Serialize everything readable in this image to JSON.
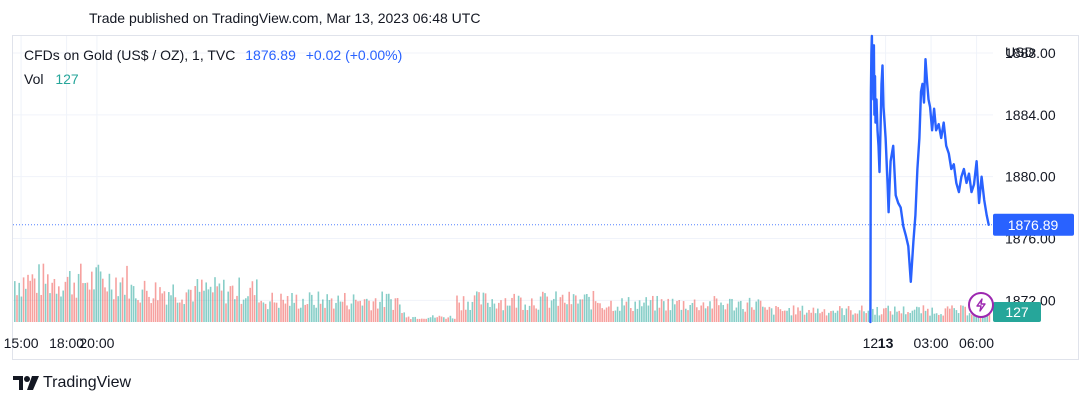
{
  "header": {
    "published": "Trade published on TradingView.com, Mar 13, 2023 06:48 UTC"
  },
  "legend": {
    "symbol": "CFDs on Gold (US$ / OZ), 1, TVC",
    "last": "1876.89",
    "change": "+0.02 (+0.00%)",
    "vol_label": "Vol",
    "vol_value": "127"
  },
  "price_axis": {
    "currency": "USD",
    "last_price_label": "1876.89",
    "last_vol_label": "127"
  },
  "brand": {
    "name": "TradingView"
  },
  "colors": {
    "line": "#2962ff",
    "vol_up": "#26a69a",
    "vol_down": "#ef5350",
    "grid": "#f0f3fa",
    "flash_icon": "#9c27b0"
  },
  "chart_data": {
    "type": "line",
    "title": "CFDs on Gold (US$ / OZ), 1, TVC",
    "ylabel": "USD",
    "ylim": [
      1870.6,
      1889.1
    ],
    "y_ticks": [
      1872.0,
      1876.0,
      1880.0,
      1884.0,
      1888.0
    ],
    "y_tick_labels": [
      "1872.00",
      "1876.00",
      "1880.00",
      "1884.00",
      "1888.00"
    ],
    "x_range": [
      "2023-03-10 14:28",
      "2023-03-13 07:05"
    ],
    "x_tick_labels": [
      {
        "x": "2023-03-10 15:00",
        "label": "15:00",
        "bold": false
      },
      {
        "x": "2023-03-10 18:00",
        "label": "18:00",
        "bold": false
      },
      {
        "x": "2023-03-10 20:00",
        "label": "20:00",
        "bold": false
      },
      {
        "x": "2023-03-12 23:00",
        "label": "12",
        "bold": false
      },
      {
        "x": "2023-03-13 00:00",
        "label": "13",
        "bold": true
      },
      {
        "x": "2023-03-13 03:00",
        "label": "03:00",
        "bold": false
      },
      {
        "x": "2023-03-13 06:00",
        "label": "06:00",
        "bold": false
      }
    ],
    "grid": true,
    "last_price": 1876.89,
    "series": [
      {
        "x": [
          "2023-03-12 23:00",
          "2023-03-12 23:02",
          "2023-03-12 23:04",
          "2023-03-12 23:06",
          "2023-03-12 23:08",
          "2023-03-12 23:10",
          "2023-03-12 23:12",
          "2023-03-12 23:14",
          "2023-03-12 23:16",
          "2023-03-12 23:18",
          "2023-03-12 23:20",
          "2023-03-12 23:24",
          "2023-03-12 23:28",
          "2023-03-12 23:32",
          "2023-03-12 23:36",
          "2023-03-12 23:40",
          "2023-03-12 23:44",
          "2023-03-12 23:48",
          "2023-03-12 23:52",
          "2023-03-12 23:56",
          "2023-03-13 00:00",
          "2023-03-13 00:04",
          "2023-03-13 00:08",
          "2023-03-13 00:12",
          "2023-03-13 00:16",
          "2023-03-13 00:20",
          "2023-03-13 00:30",
          "2023-03-13 00:40",
          "2023-03-13 00:50",
          "2023-03-13 01:00",
          "2023-03-13 01:10",
          "2023-03-13 01:20",
          "2023-03-13 01:30",
          "2023-03-13 01:40",
          "2023-03-13 01:50",
          "2023-03-13 01:58",
          "2023-03-13 02:06",
          "2023-03-13 02:14",
          "2023-03-13 02:20",
          "2023-03-13 02:26",
          "2023-03-13 02:32",
          "2023-03-13 02:38",
          "2023-03-13 02:44",
          "2023-03-13 02:50",
          "2023-03-13 02:56",
          "2023-03-13 03:04",
          "2023-03-13 03:12",
          "2023-03-13 03:20",
          "2023-03-13 03:30",
          "2023-03-13 03:40",
          "2023-03-13 03:50",
          "2023-03-13 04:00",
          "2023-03-13 04:10",
          "2023-03-13 04:20",
          "2023-03-13 04:30",
          "2023-03-13 04:40",
          "2023-03-13 04:50",
          "2023-03-13 05:00",
          "2023-03-13 05:10",
          "2023-03-13 05:20",
          "2023-03-13 05:30",
          "2023-03-13 05:40",
          "2023-03-13 05:50",
          "2023-03-13 06:00",
          "2023-03-13 06:10",
          "2023-03-13 06:20",
          "2023-03-13 06:30",
          "2023-03-13 06:40",
          "2023-03-13 06:48"
        ],
        "values": [
          1870.6,
          1885.5,
          1888.0,
          1889.1,
          1886.0,
          1887.5,
          1885.0,
          1888.5,
          1884.0,
          1886.5,
          1883.5,
          1885.0,
          1883.0,
          1882.0,
          1880.3,
          1883.0,
          1886.0,
          1887.2,
          1884.5,
          1883.5,
          1882.5,
          1881.0,
          1879.5,
          1877.7,
          1879.5,
          1881.0,
          1882.0,
          1878.8,
          1878.3,
          1878.0,
          1876.8,
          1876.2,
          1875.5,
          1873.2,
          1875.8,
          1877.5,
          1880.5,
          1882.5,
          1885.5,
          1886.0,
          1884.8,
          1887.6,
          1886.2,
          1885.0,
          1884.5,
          1883.0,
          1884.4,
          1883.0,
          1883.4,
          1882.5,
          1883.5,
          1882.0,
          1881.5,
          1880.5,
          1880.8,
          1879.6,
          1879.0,
          1880.0,
          1880.5,
          1879.6,
          1880.2,
          1879.0,
          1879.5,
          1881.0,
          1878.3,
          1880.0,
          1878.5,
          1877.5,
          1876.89
        ]
      }
    ],
    "volume": {
      "label": "Vol",
      "last": 127,
      "description": "1-minute volume bars, green (up) / red (down), shown as small histogram along bottom"
    }
  }
}
